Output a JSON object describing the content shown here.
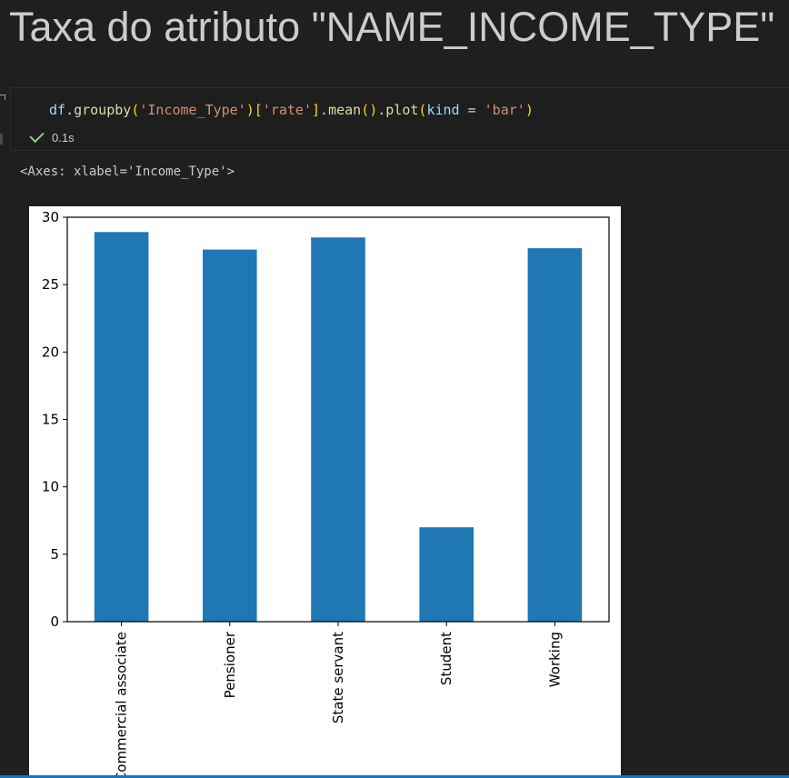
{
  "heading": "Taxa do atributo \"NAME_INCOME_TYPE\"",
  "code_cell": {
    "tokens": [
      {
        "t": "df",
        "c": "tk-var"
      },
      {
        "t": ".",
        "c": "tk-op"
      },
      {
        "t": "groupby",
        "c": "tk-fn"
      },
      {
        "t": "(",
        "c": "tk-p1"
      },
      {
        "t": "'Income_Type'",
        "c": "tk-str"
      },
      {
        "t": ")",
        "c": "tk-p1"
      },
      {
        "t": "[",
        "c": "tk-p1"
      },
      {
        "t": "'rate'",
        "c": "tk-str"
      },
      {
        "t": "]",
        "c": "tk-p1"
      },
      {
        "t": ".",
        "c": "tk-op"
      },
      {
        "t": "mean",
        "c": "tk-fn"
      },
      {
        "t": "()",
        "c": "tk-p1"
      },
      {
        "t": ".",
        "c": "tk-op"
      },
      {
        "t": "plot",
        "c": "tk-fn"
      },
      {
        "t": "(",
        "c": "tk-p1"
      },
      {
        "t": "kind",
        "c": "tk-kw"
      },
      {
        "t": " = ",
        "c": "tk-op"
      },
      {
        "t": "'bar'",
        "c": "tk-str"
      },
      {
        "t": ")",
        "c": "tk-p1"
      }
    ],
    "exec_time": "0.1s",
    "status_icon": "check-icon"
  },
  "output_text": "<Axes: xlabel='Income_Type'>",
  "colors": {
    "bar": "#1f77b4",
    "success": "#89d185",
    "accent": "#0078d4"
  },
  "chart_data": {
    "type": "bar",
    "xlabel": "",
    "categories": [
      "Commercial associate",
      "Pensioner",
      "State servant",
      "Student",
      "Working"
    ],
    "values": [
      28.9,
      27.6,
      28.5,
      7.0,
      27.7
    ],
    "ylim": [
      0,
      30
    ],
    "yticks": [
      0,
      5,
      10,
      15,
      20,
      25,
      30
    ],
    "grid": false,
    "legend": "none"
  }
}
